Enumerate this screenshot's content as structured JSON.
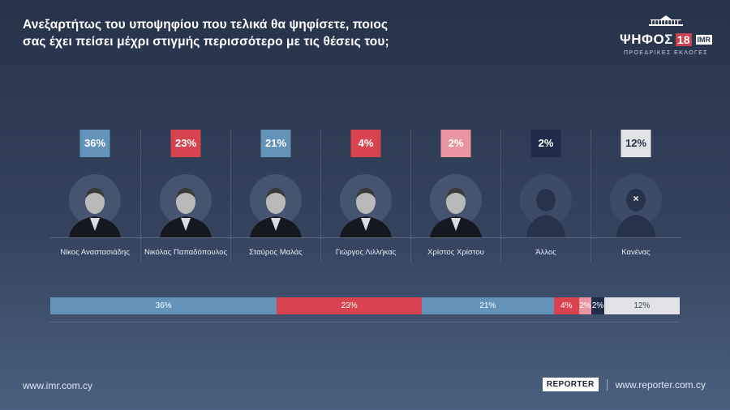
{
  "title": {
    "line1": "Ανεξαρτήτως του υποψηφίου που τελικά θα ψηφίσετε, ποιος",
    "line2": "σας έχει πείσει μέχρι στιγμής περισσότερο με τις θέσεις του;"
  },
  "brand": {
    "word": "ΨΗΦΟΣ",
    "number": "18",
    "imr": "IMR",
    "subtitle": "ΠΡΟΕΔΡΙΚΕΣ ΕΚΛΟΓΕΣ"
  },
  "chart_data": {
    "type": "bar",
    "categories": [
      "Νίκος Αναστασιάδης",
      "Νικόλας Παπαδόπουλος",
      "Σταύρος Μαλάς",
      "Γιώργος Λιλλήκας",
      "Χρίστος Χρίστου",
      "Άλλος",
      "Κανένας"
    ],
    "values": [
      36,
      23,
      21,
      4,
      2,
      2,
      12
    ],
    "labels": [
      "36%",
      "23%",
      "21%",
      "4%",
      "2%",
      "2%",
      "12%"
    ],
    "colors": [
      "#6393b9",
      "#d9434f",
      "#6393b9",
      "#d9434f",
      "#e8959f",
      "#1f2c4a",
      "#e2e3e6"
    ],
    "label_text_colors": [
      "#ffffff",
      "#ffffff",
      "#ffffff",
      "#ffffff",
      "#ffffff",
      "#ffffff",
      "#26344a"
    ],
    "bar_text_colors": [
      "#ffffff",
      "#ffffff",
      "#ffffff",
      "#ffffff",
      "#ffffff",
      "#ffffff",
      "#3a4458"
    ],
    "unit": "%"
  },
  "silhouettes": [
    false,
    false,
    false,
    false,
    false,
    true,
    true
  ],
  "silhouette_marks": [
    "",
    "",
    "",
    "",
    "",
    "",
    "×"
  ],
  "footer": {
    "left_url": "www.imr.com.cy",
    "reporter_logo": "REPORTER",
    "right_url": "www.reporter.com.cy"
  }
}
